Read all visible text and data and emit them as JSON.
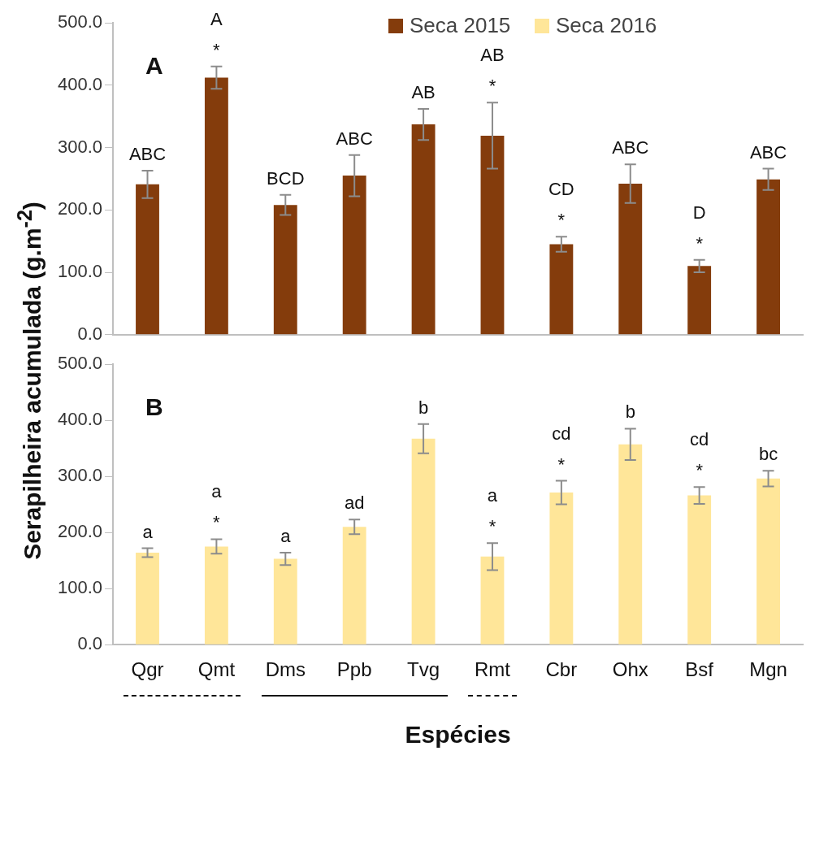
{
  "chart_data": [
    {
      "type": "bar",
      "ylabel": "Serapilheira acumulada (g.m$^{-2}$)",
      "categories": [
        "Qgr",
        "Qmt",
        "Dms",
        "Ppb",
        "Tvg",
        "Rmt",
        "Cbr",
        "Ohx",
        "Bsf",
        "Mgn"
      ],
      "series": [
        {
          "name": "Seca 2015",
          "color": "#843c0c",
          "values": [
            241,
            412,
            208,
            255,
            337,
            319,
            145,
            242,
            110,
            249
          ],
          "errors": [
            22,
            18,
            16,
            33,
            25,
            53,
            12,
            31,
            10,
            17
          ]
        }
      ],
      "ylim": [
        0,
        500
      ],
      "yticks": [
        {
          "value": 0,
          "label": "0.0"
        },
        {
          "value": 100,
          "label": "100.0"
        },
        {
          "value": 200,
          "label": "200.0"
        },
        {
          "value": 300,
          "label": "300.0"
        },
        {
          "value": 400,
          "label": "400.0"
        },
        {
          "value": 500,
          "label": "500.0"
        }
      ],
      "grid": false,
      "legend": "top",
      "tick_labels": "y",
      "annotations": [
        "A",
        {
          "text": "ABC",
          "x": "Qgr",
          "y": 263
        },
        {
          "text": "*",
          "x": "Qmt",
          "y": 430
        },
        {
          "text": "A",
          "x": "Qmt",
          "y": 430
        },
        {
          "text": "BCD",
          "x": "Dms",
          "y": 224
        },
        {
          "text": "ABC",
          "x": "Ppb",
          "y": 288
        },
        {
          "text": "AB",
          "x": "Tvg",
          "y": 362
        },
        {
          "text": "*",
          "x": "Rmt",
          "y": 372
        },
        {
          "text": "AB",
          "x": "Rmt",
          "y": 372
        },
        {
          "text": "*",
          "x": "Cbr",
          "y": 157
        },
        {
          "text": "CD",
          "x": "Cbr",
          "y": 157
        },
        {
          "text": "ABC",
          "x": "Ohx",
          "y": 273
        },
        {
          "text": "*",
          "x": "Bsf",
          "y": 120
        },
        {
          "text": "D",
          "x": "Bsf",
          "y": 120
        },
        {
          "text": "ABC",
          "x": "Mgn",
          "y": 266
        }
      ]
    },
    {
      "type": "bar",
      "xlabel": "Espécies",
      "categories": [
        "Qgr",
        "Qmt",
        "Dms",
        "Ppb",
        "Tvg",
        "Rmt",
        "Cbr",
        "Ohx",
        "Bsf",
        "Mgn"
      ],
      "series": [
        {
          "name": "Seca 2016",
          "color": "#ffe699",
          "values": [
            164,
            175,
            153,
            210,
            367,
            157,
            271,
            357,
            266,
            296
          ],
          "errors": [
            8,
            13,
            11,
            13,
            26,
            24,
            21,
            28,
            15,
            14
          ]
        }
      ],
      "ylim": [
        0,
        500
      ],
      "yticks": [
        {
          "value": 0,
          "label": "0.0"
        },
        {
          "value": 100,
          "label": "100.0"
        },
        {
          "value": 200,
          "label": "200.0"
        },
        {
          "value": 300,
          "label": "300.0"
        },
        {
          "value": 400,
          "label": "400.0"
        },
        {
          "value": 500,
          "label": "500.0"
        }
      ],
      "grid": false,
      "legend": "top",
      "annotations": [
        "B",
        {
          "text": "a",
          "x": "Qgr",
          "y": 172
        },
        {
          "text": "*",
          "x": "Qmt",
          "y": 188
        },
        {
          "text": "a",
          "x": "Qmt",
          "y": 188
        },
        {
          "text": "a",
          "x": "Dms",
          "y": 164
        },
        {
          "text": "ad",
          "x": "Ppb",
          "y": 224
        },
        {
          "text": "b",
          "x": "Tvg",
          "y": 393
        },
        {
          "text": "*",
          "x": "Rmt",
          "y": 181
        },
        {
          "text": "a",
          "x": "Rmt",
          "y": 181
        },
        {
          "text": "*",
          "x": "Cbr",
          "y": 292
        },
        {
          "text": "cd",
          "x": "Cbr",
          "y": 292
        },
        {
          "text": "b",
          "x": "Ohx",
          "y": 385
        },
        {
          "text": "*",
          "x": "Bsf",
          "y": 281
        },
        {
          "text": "cd",
          "x": "Bsf",
          "y": 281
        },
        {
          "text": "bc",
          "x": "Mgn",
          "y": 310
        }
      ]
    }
  ]
}
